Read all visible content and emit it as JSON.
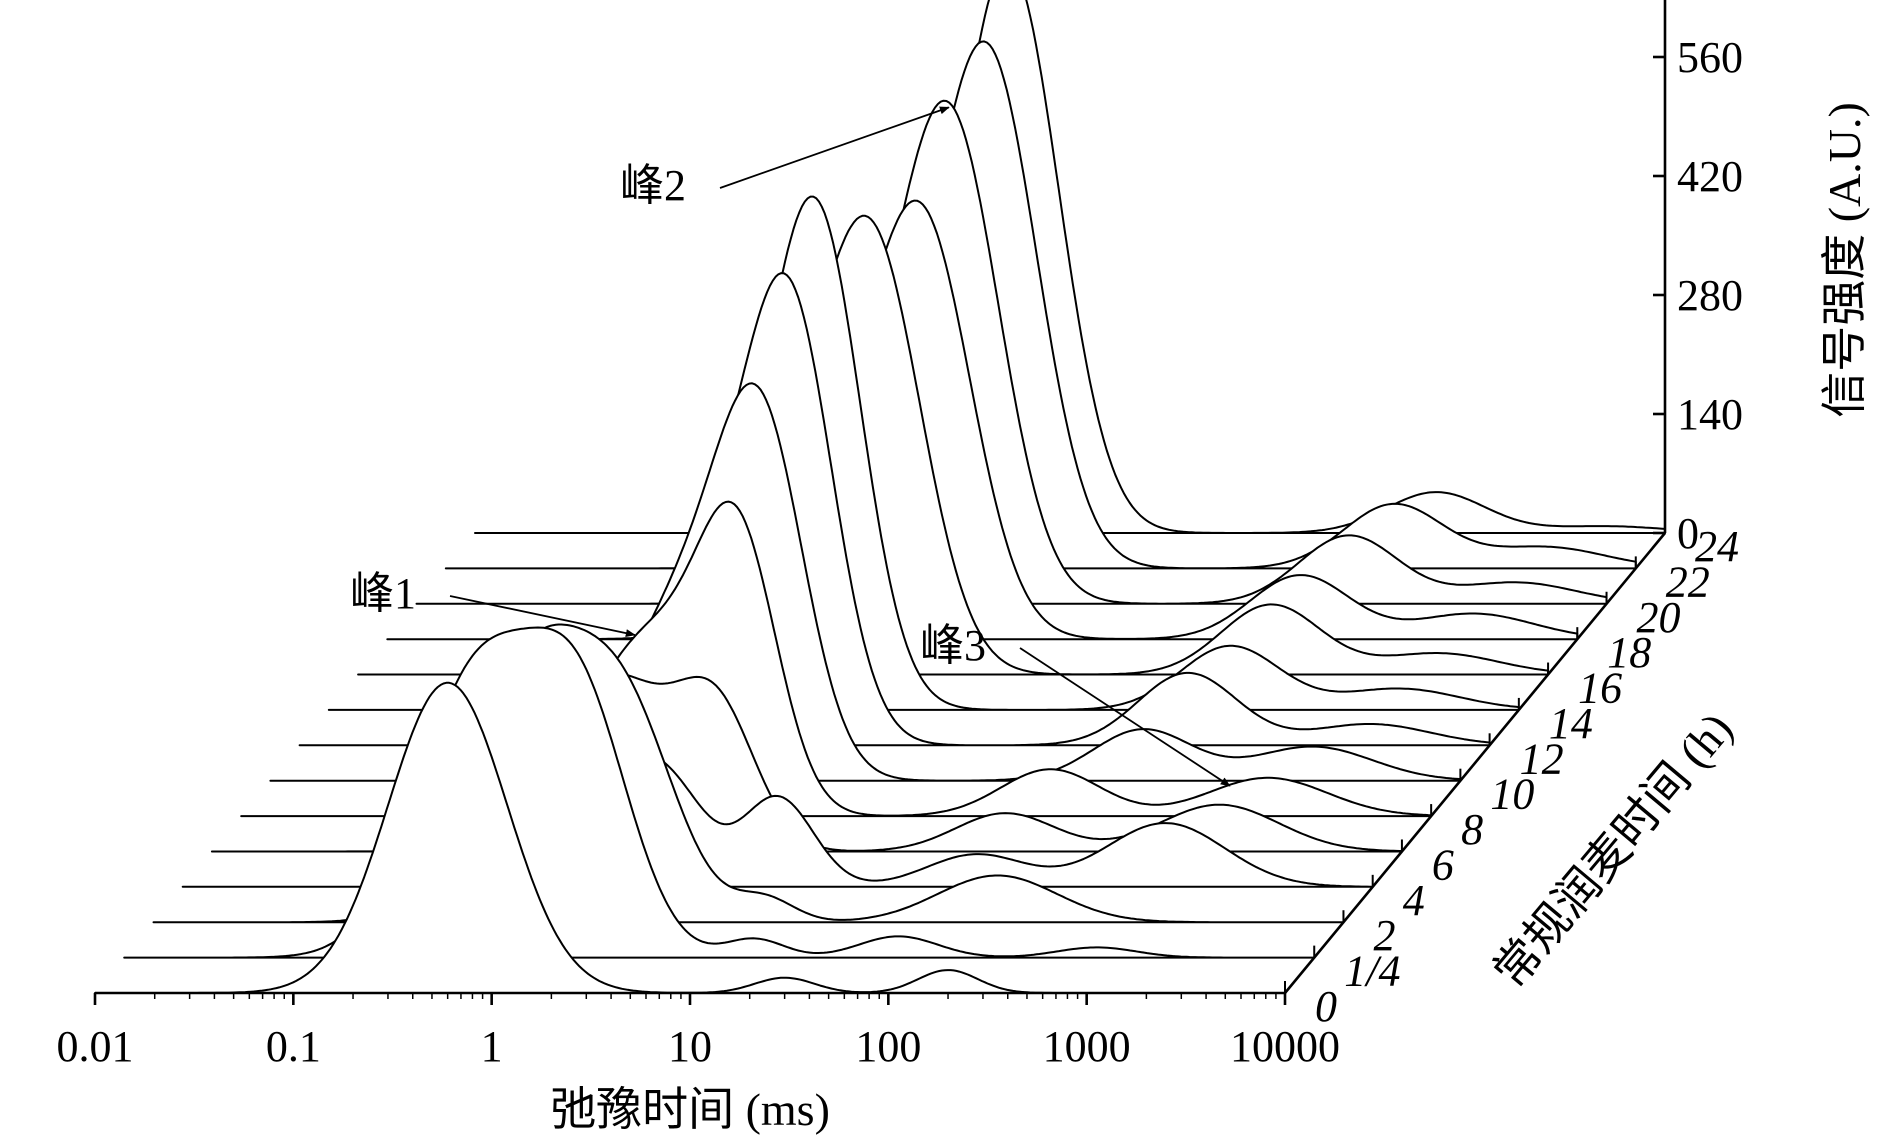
{
  "chart_data": {
    "type": "line",
    "subtype": "3d-waterfall",
    "x": {
      "label": "弛豫时间 (ms)",
      "scale": "log",
      "range": [
        0.01,
        10000
      ],
      "ticks": [
        "0.01",
        "0.1",
        "1",
        "10",
        "100",
        "1000",
        "10000"
      ]
    },
    "y": {
      "label": "信号强度 (A.U.)",
      "range": [
        0,
        560
      ],
      "ticks": [
        "0",
        "140",
        "280",
        "420",
        "560"
      ]
    },
    "depth": {
      "label": "常规润麦时间 (h)",
      "ticks": [
        "0",
        "1/4",
        "2",
        "4",
        "6",
        "8",
        "10",
        "12",
        "14",
        "16",
        "18",
        "20",
        "22",
        "24"
      ]
    },
    "series": [
      {
        "name": "0",
        "peaks": [
          [
            0.6,
            365,
            0.3
          ],
          [
            30,
            18,
            0.15
          ],
          [
            200,
            27,
            0.15
          ]
        ],
        "start": 0.011,
        "end": 2.4,
        "end2": 350
      },
      {
        "name": "1/4",
        "peaks": [
          [
            0.6,
            330,
            0.3
          ],
          [
            2.0,
            280,
            0.25
          ],
          [
            15,
            22,
            0.15
          ],
          [
            80,
            25,
            0.2
          ],
          [
            800,
            12,
            0.2
          ]
        ],
        "start": 0.011,
        "end": 2.4,
        "end2": 9000
      },
      {
        "name": "2",
        "peaks": [
          [
            0.8,
            305,
            0.3
          ],
          [
            2.5,
            210,
            0.25
          ],
          [
            12,
            28,
            0.15
          ],
          [
            180,
            55,
            0.3
          ]
        ],
        "start": 0.011,
        "end": 3.0,
        "end2": 9000
      },
      {
        "name": "4",
        "peaks": [
          [
            1.0,
            190,
            0.3
          ],
          [
            3.0,
            80,
            0.18
          ],
          [
            10,
            105,
            0.18
          ],
          [
            100,
            38,
            0.25
          ],
          [
            900,
            75,
            0.3
          ]
        ],
        "start": 0.011,
        "end": 30,
        "end2": 9000
      },
      {
        "name": "6",
        "peaks": [
          [
            1.0,
            205,
            0.3
          ],
          [
            3.5,
            155,
            0.2
          ],
          [
            100,
            45,
            0.25
          ],
          [
            1200,
            55,
            0.3
          ]
        ],
        "start": 0.011,
        "end": 30,
        "end2": 9000
      },
      {
        "name": "8",
        "peaks": [
          [
            1.1,
            205,
            0.3
          ],
          [
            3.2,
            300,
            0.2
          ],
          [
            120,
            55,
            0.25
          ],
          [
            1500,
            45,
            0.3
          ]
        ],
        "start": 0.011,
        "end": 30,
        "end2": 9000
      },
      {
        "name": "10",
        "peaks": [
          [
            1.2,
            200,
            0.3
          ],
          [
            3.0,
            375,
            0.22
          ],
          [
            250,
            60,
            0.25
          ],
          [
            1800,
            40,
            0.3
          ]
        ],
        "start": 0.011,
        "end": 30,
        "end2": 9000
      },
      {
        "name": "12",
        "peaks": [
          [
            1.2,
            210,
            0.3
          ],
          [
            3.0,
            460,
            0.22
          ],
          [
            300,
            85,
            0.25
          ],
          [
            2500,
            25,
            0.3
          ]
        ],
        "start": 0.011,
        "end": 30,
        "end2": 9000
      },
      {
        "name": "14",
        "peaks": [
          [
            1.5,
            200,
            0.3
          ],
          [
            3.0,
            475,
            0.22
          ],
          [
            350,
            75,
            0.25
          ],
          [
            2500,
            25,
            0.3
          ]
        ],
        "start": 0.011,
        "end": 35,
        "end2": 9000
      },
      {
        "name": "16",
        "peaks": [
          [
            1.5,
            195,
            0.3
          ],
          [
            4.0,
            460,
            0.25
          ],
          [
            400,
            82,
            0.25
          ],
          [
            2800,
            25,
            0.3
          ]
        ],
        "start": 0.011,
        "end": 35,
        "end2": 9000
      },
      {
        "name": "18",
        "peaks": [
          [
            1.5,
            190,
            0.3
          ],
          [
            5.0,
            470,
            0.25
          ],
          [
            400,
            75,
            0.25
          ],
          [
            3000,
            30,
            0.3
          ]
        ],
        "start": 0.011,
        "end": 40,
        "end2": 9000
      },
      {
        "name": "20",
        "peaks": [
          [
            2.0,
            160,
            0.3
          ],
          [
            5.0,
            520,
            0.25
          ],
          [
            500,
            80,
            0.25
          ],
          [
            3500,
            25,
            0.3
          ]
        ],
        "start": 0.011,
        "end": 50,
        "end2": 9000
      },
      {
        "name": "22",
        "peaks": [
          [
            2.0,
            150,
            0.3
          ],
          [
            5.5,
            565,
            0.25
          ],
          [
            600,
            75,
            0.25
          ],
          [
            3500,
            25,
            0.3
          ]
        ],
        "start": 0.011,
        "end": 60,
        "end2": 9000
      },
      {
        "name": "24",
        "peaks": [
          [
            2.0,
            70,
            0.3
          ],
          [
            5.0,
            640,
            0.25
          ],
          [
            700,
            48,
            0.25
          ],
          [
            5000,
            8,
            0.3
          ]
        ],
        "start": 0.011,
        "end": 70,
        "end2": 9000
      }
    ]
  },
  "annotations": [
    {
      "text": "峰1",
      "series": "8",
      "x": 1.0
    },
    {
      "text": "峰2",
      "series": "20",
      "x": 5.0
    },
    {
      "text": "峰3",
      "series": "8",
      "x": 1000
    }
  ]
}
